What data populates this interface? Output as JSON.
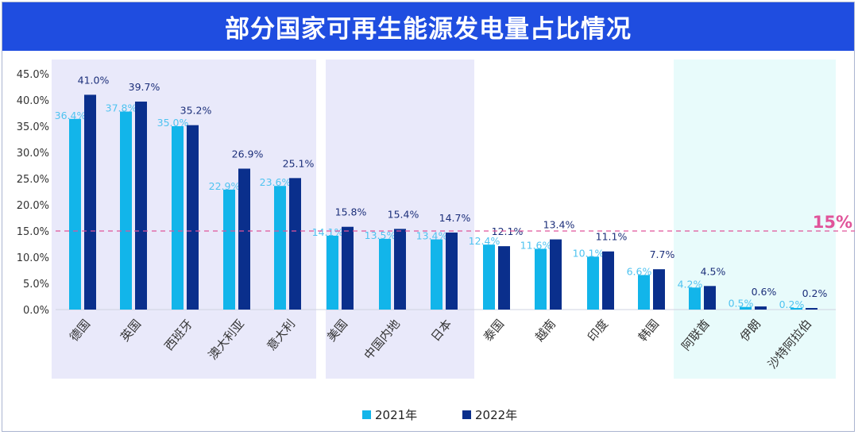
{
  "header": {
    "title": "部分国家可再生能源发电量占比情况"
  },
  "chart_data": {
    "type": "bar",
    "title": "部分国家可再生能源发电量占比情况",
    "xlabel": "",
    "ylabel": "",
    "ylim": [
      0,
      45
    ],
    "yticks": [
      "0.0%",
      "5.0%",
      "10.0%",
      "15.0%",
      "20.0%",
      "25.0%",
      "30.0%",
      "35.0%",
      "40.0%",
      "45.0%"
    ],
    "ytick_values": [
      0,
      5,
      10,
      15,
      20,
      25,
      30,
      35,
      40,
      45
    ],
    "categories": [
      "德国",
      "英国",
      "西班牙",
      "澳大利亚",
      "意大利",
      "美国",
      "中国内地",
      "日本",
      "泰国",
      "越南",
      "印度",
      "韩国",
      "阿联酋",
      "伊朗",
      "沙特阿拉伯"
    ],
    "series": [
      {
        "name": "2021年",
        "color": "#12b5ea",
        "values": [
          36.4,
          37.8,
          35.0,
          22.9,
          23.6,
          14.1,
          13.5,
          13.4,
          12.4,
          11.6,
          10.1,
          6.6,
          4.2,
          0.5,
          0.2
        ],
        "labels": [
          "36.4%",
          "37.8%",
          "35.0%",
          "22.9%",
          "23.6%",
          "14.1%",
          "13.5%",
          "13.4%",
          "12.4%",
          "11.6%",
          "10.1%",
          "6.6%",
          "4.2%",
          "0.5%",
          "0.2%"
        ]
      },
      {
        "name": "2022年",
        "color": "#0a2f8c",
        "values": [
          41.0,
          39.7,
          35.2,
          26.9,
          25.1,
          15.8,
          15.4,
          14.7,
          12.1,
          13.4,
          11.1,
          7.7,
          4.5,
          0.6,
          0.2
        ],
        "labels": [
          "41.0%",
          "39.7%",
          "35.2%",
          "26.9%",
          "25.1%",
          "15.8%",
          "15.4%",
          "14.7%",
          "12.1%",
          "13.4%",
          "11.1%",
          "7.7%",
          "4.5%",
          "0.6%",
          "0.2%"
        ]
      }
    ],
    "reference_line": {
      "value": 15,
      "label": "15%",
      "color": "#e0549a",
      "style": "dashed"
    },
    "highlight_groups": [
      {
        "categories": [
          "德国",
          "英国",
          "西班牙",
          "澳大利亚",
          "意大利"
        ],
        "color": "#e9e9fa"
      },
      {
        "categories": [
          "美国",
          "中国内地",
          "日本"
        ],
        "color": "#e9e9fa"
      },
      {
        "categories": [
          "阿联酋",
          "伊朗",
          "沙特阿拉伯"
        ],
        "color": "#e8fbfb"
      }
    ],
    "grid": false,
    "legend": {
      "position": "bottom-center",
      "entries": [
        "2021年",
        "2022年"
      ]
    }
  }
}
